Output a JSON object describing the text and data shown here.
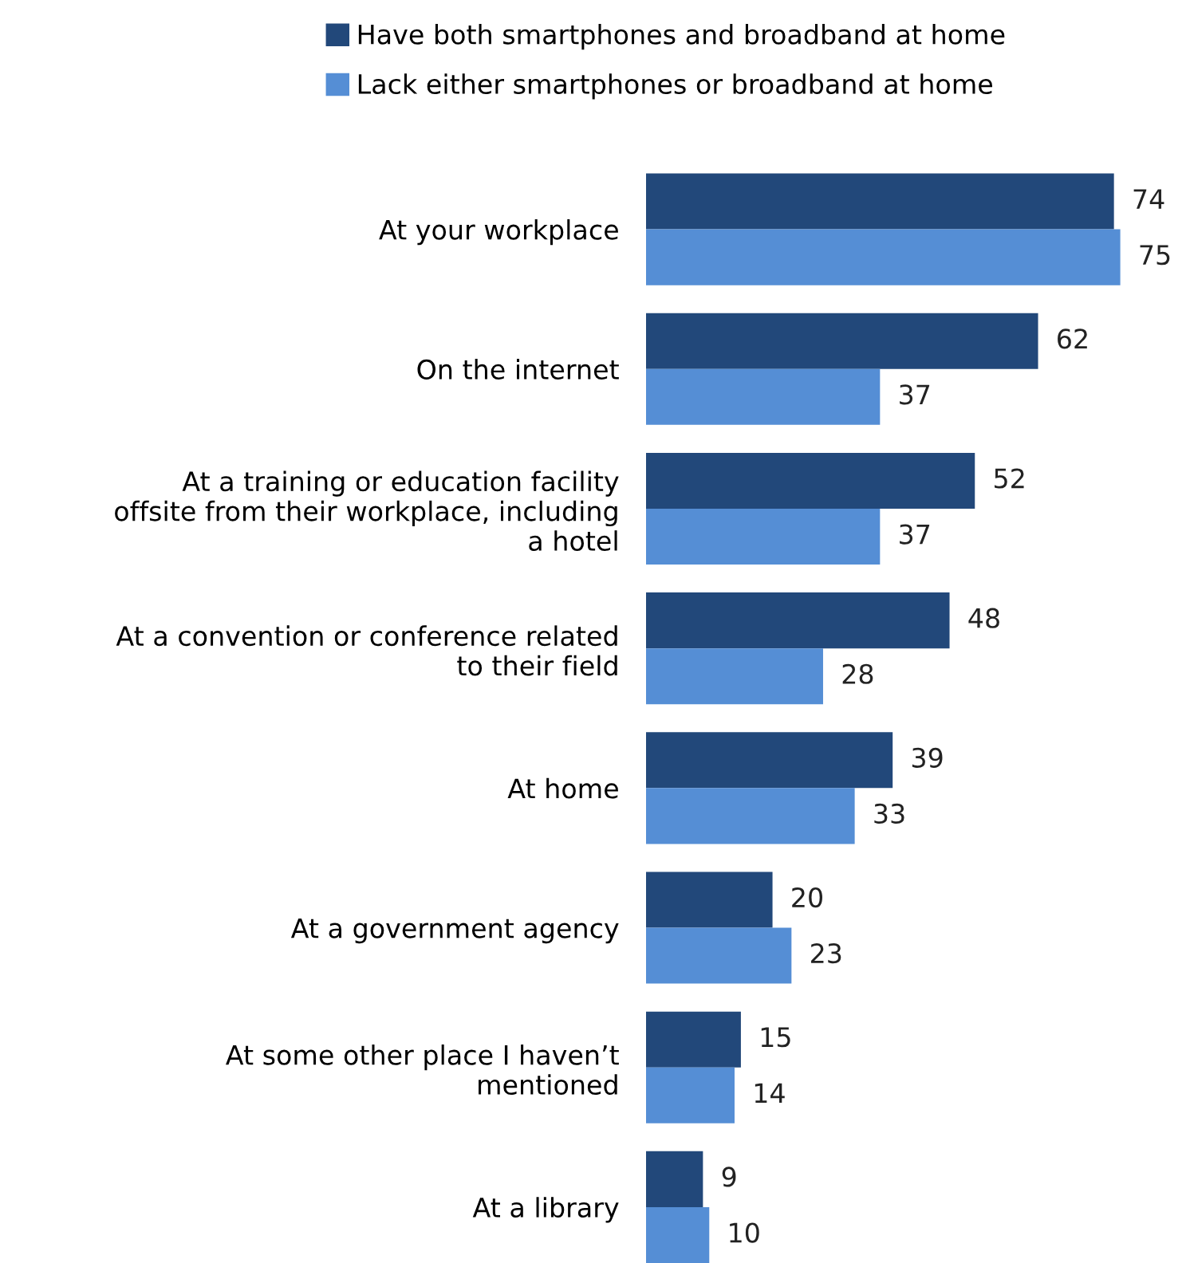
{
  "chart_data": {
    "type": "bar",
    "orientation": "horizontal",
    "data_labels": true,
    "legend": "top",
    "grid": false,
    "categories": [
      "At your workplace",
      "On the internet",
      "At a training or education facility\noffsite from their workplace, including\na hotel",
      "At a convention or conference related\nto their field",
      "At home",
      "At a government agency",
      "At some other place I haven’t\nmentioned",
      "At a library"
    ],
    "series": [
      {
        "name": "Have both smartphones and broadband at home",
        "color": "#22487a",
        "values": [
          74,
          62,
          52,
          48,
          39,
          20,
          15,
          9
        ]
      },
      {
        "name": "Lack either smartphones or broadband at home",
        "color": "#558ed5",
        "values": [
          75,
          37,
          37,
          28,
          33,
          23,
          14,
          10
        ]
      }
    ]
  }
}
